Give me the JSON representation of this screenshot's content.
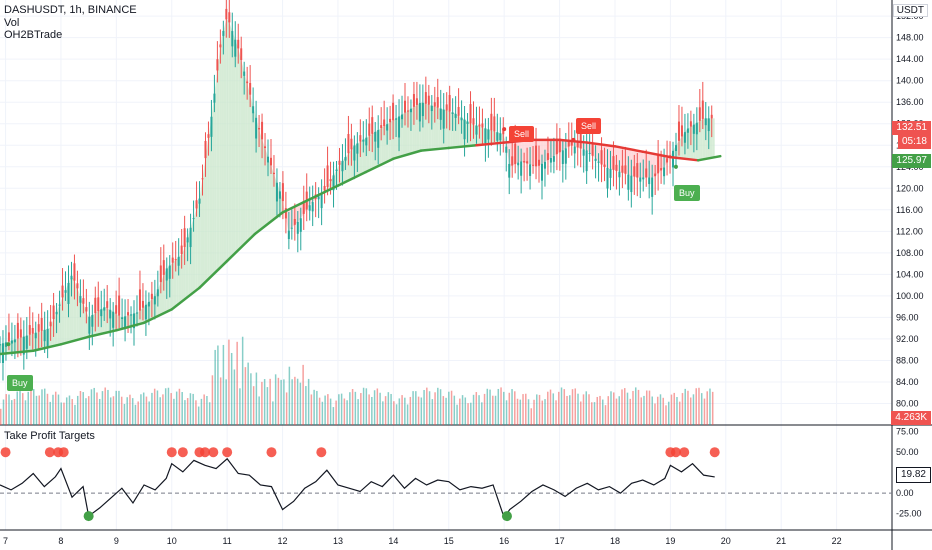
{
  "header": {
    "symbol": "DASHUSDT, 1h, BINANCE",
    "indicator1": "Vol",
    "indicator2": "OH2BTrade"
  },
  "currency": "USDT",
  "current_price": "132.51",
  "countdown": "05:18",
  "ma_price": "125.97",
  "volume_readout": "4.263K",
  "oscillator_value": "19.82",
  "lower_pane_title": "Take Profit Targets",
  "signals": {
    "buy": "Buy",
    "sell": "Sell",
    "sell_partial": "Sell"
  },
  "colors": {
    "up": "#26a69a",
    "down": "#ef5350",
    "ma_up": "#43a047",
    "ma_down": "#e53935",
    "fill_up": "#c8e6c9",
    "fill_down": "#ffcdd2",
    "oscillator": "#131722",
    "tp_dot": "#f44336"
  },
  "chart_data": {
    "type": "line",
    "x_ticks": [
      "7",
      "8",
      "9",
      "10",
      "11",
      "12",
      "13",
      "14",
      "15",
      "16",
      "17",
      "18",
      "19",
      "20",
      "21",
      "22"
    ],
    "y_ticks": [
      80,
      84,
      88,
      92,
      96,
      100,
      104,
      108,
      112,
      116,
      120,
      124,
      128,
      132,
      136,
      140,
      144,
      148,
      152
    ],
    "ylim": [
      76,
      155
    ],
    "osc_ticks": [
      75,
      50,
      25,
      0,
      -25
    ],
    "osc_ylim": [
      -45,
      82
    ],
    "xlim": [
      6.9,
      23
    ],
    "price_series": {
      "x": [
        6.9,
        7.2,
        7.5,
        7.8,
        8.0,
        8.2,
        8.5,
        8.8,
        9.1,
        9.4,
        9.7,
        9.9,
        10.2,
        10.5,
        10.7,
        10.9,
        11.0,
        11.2,
        11.4,
        11.6,
        11.8,
        12.0,
        12.1,
        12.3,
        12.5,
        12.8,
        13.0,
        13.3,
        13.6,
        13.9,
        14.2,
        14.5,
        14.8,
        15.1,
        15.4,
        15.7,
        16.0,
        16.1,
        16.3,
        16.6,
        16.9,
        17.2,
        17.5,
        17.8,
        18.1,
        18.4,
        18.7,
        18.9,
        19.1,
        19.3,
        19.6,
        19.8
      ],
      "values": [
        91,
        92,
        93,
        94,
        99,
        104,
        96,
        98,
        96,
        97,
        100,
        105,
        108,
        118,
        132,
        148,
        152,
        146,
        138,
        130,
        124,
        118,
        112,
        114,
        117,
        120,
        124,
        128,
        130,
        132,
        134,
        136,
        135,
        134,
        132,
        131,
        130,
        124,
        125,
        124,
        126,
        128,
        127,
        124,
        123,
        122,
        122,
        124,
        128,
        131,
        133,
        133
      ]
    },
    "ma_series": {
      "x": [
        6.9,
        7.5,
        8.0,
        8.5,
        9.0,
        9.5,
        10.0,
        10.5,
        11.0,
        11.5,
        12.0,
        12.5,
        13.0,
        13.5,
        14.0,
        14.5,
        15.0,
        15.5,
        16.0,
        16.5,
        17.0,
        17.5,
        18.0,
        18.5,
        19.0,
        19.5,
        19.9
      ],
      "values": [
        89.2,
        89.8,
        91.0,
        92.4,
        93.6,
        95.0,
        97.5,
        101.5,
        106.5,
        111.5,
        115.5,
        118.0,
        120.5,
        123.0,
        125.5,
        127.0,
        127.5,
        128.0,
        128.5,
        129.0,
        129.0,
        128.5,
        127.8,
        126.8,
        125.8,
        125.2,
        125.97
      ]
    },
    "osc_series": {
      "x": [
        6.9,
        7.1,
        7.3,
        7.5,
        7.7,
        7.9,
        8.0,
        8.2,
        8.4,
        8.5,
        8.7,
        8.9,
        9.1,
        9.3,
        9.5,
        9.7,
        9.9,
        10.0,
        10.2,
        10.4,
        10.6,
        10.8,
        11.0,
        11.2,
        11.4,
        11.6,
        11.8,
        12.0,
        12.2,
        12.4,
        12.6,
        12.8,
        13.0,
        13.2,
        13.4,
        13.6,
        13.8,
        14.0,
        14.2,
        14.4,
        14.6,
        14.8,
        15.0,
        15.2,
        15.4,
        15.6,
        15.8,
        16.0,
        16.1,
        16.3,
        16.5,
        16.7,
        16.9,
        17.1,
        17.3,
        17.5,
        17.7,
        17.9,
        18.1,
        18.3,
        18.5,
        18.7,
        18.9,
        19.0,
        19.2,
        19.4,
        19.6,
        19.8
      ],
      "values": [
        10,
        4,
        12,
        24,
        8,
        20,
        30,
        -5,
        8,
        -28,
        -18,
        -6,
        6,
        -12,
        10,
        4,
        18,
        36,
        26,
        40,
        34,
        30,
        42,
        24,
        22,
        10,
        8,
        -20,
        -10,
        6,
        14,
        28,
        10,
        6,
        2,
        14,
        8,
        22,
        6,
        18,
        10,
        16,
        14,
        4,
        8,
        6,
        10,
        -30,
        -20,
        -10,
        2,
        10,
        4,
        -4,
        6,
        12,
        4,
        8,
        0,
        12,
        16,
        10,
        18,
        34,
        26,
        36,
        22,
        19.82
      ]
    }
  }
}
